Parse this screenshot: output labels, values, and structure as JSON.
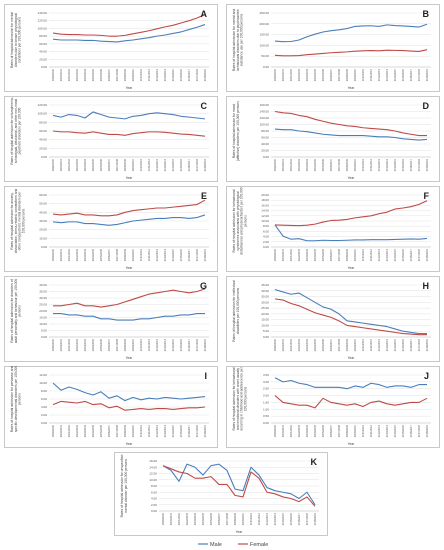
{
  "legend": {
    "items": [
      {
        "name": "Male",
        "color": "#4a7ebb"
      },
      {
        "name": "Female",
        "color": "#be4b48"
      }
    ]
  },
  "chart_data": [
    {
      "letter": "A",
      "type": "line",
      "ylabel": "Rates of hospital admission for mental disorders due to known physiological conditions per 100,000 persons",
      "xlabel": "Year",
      "ylim": [
        0,
        140
      ],
      "yticks": [
        "0.00",
        "20.00",
        "40.00",
        "60.00",
        "80.00",
        "100.00",
        "120.00",
        "140.00"
      ],
      "x": [
        "1999/2000",
        "2000/2001",
        "2001/2002",
        "2002/2003",
        "2003/2004",
        "2004/2005",
        "2005/2006",
        "2006/2007",
        "2007/2008",
        "2008/2009",
        "2009/2010",
        "2010/2011",
        "2011/2012",
        "2012/2013",
        "2013/2014",
        "2014/2015",
        "2015/2016",
        "2016/2017",
        "2017/2018",
        "2018/2019"
      ],
      "series": [
        {
          "name": "Male",
          "values": [
            72,
            70,
            70,
            70,
            69,
            69,
            67,
            66,
            65,
            68,
            70,
            73,
            76,
            80,
            83,
            87,
            91,
            97,
            103,
            110
          ]
        },
        {
          "name": "Female",
          "values": [
            88,
            85,
            84,
            84,
            83,
            83,
            82,
            80,
            80,
            82,
            86,
            90,
            94,
            99,
            104,
            108,
            114,
            120,
            127,
            136
          ]
        }
      ]
    },
    {
      "letter": "B",
      "type": "line",
      "ylabel": "Rates of hospital admission for mental and behavioural disorders due to psychoactive substance use per 100,000 persons",
      "xlabel": "Year",
      "ylim": [
        0,
        250
      ],
      "yticks": [
        "0.00",
        "50.00",
        "100.00",
        "150.00",
        "200.00",
        "250.00"
      ],
      "x": [
        "1999/2000",
        "2000/2001",
        "2001/2002",
        "2002/2003",
        "2003/2004",
        "2004/2005",
        "2005/2006",
        "2006/2007",
        "2007/2008",
        "2008/2009",
        "2009/2010",
        "2010/2011",
        "2011/2012",
        "2012/2013",
        "2013/2014",
        "2014/2015",
        "2015/2016",
        "2016/2017",
        "2017/2018",
        "2018/2019"
      ],
      "series": [
        {
          "name": "Male",
          "values": [
            120,
            117,
            118,
            125,
            140,
            152,
            162,
            168,
            172,
            178,
            188,
            190,
            191,
            188,
            195,
            192,
            190,
            188,
            185,
            198
          ]
        },
        {
          "name": "Female",
          "values": [
            54,
            52,
            52,
            53,
            57,
            60,
            63,
            66,
            68,
            70,
            73,
            75,
            76,
            75,
            78,
            77,
            76,
            74,
            72,
            80
          ]
        }
      ]
    },
    {
      "letter": "C",
      "type": "line",
      "ylabel": "Rates of hospital admission for schizophrenia, schizotypal, delusional, and other non-mood psychotic disorders per 100,000",
      "xlabel": "Year",
      "ylim": [
        0,
        120
      ],
      "yticks": [
        "0.00",
        "20.00",
        "40.00",
        "60.00",
        "80.00",
        "100.00",
        "120.00"
      ],
      "x": [
        "1999/2000",
        "2000/2001",
        "2001/2002",
        "2002/2003",
        "2003/2004",
        "2004/2005",
        "2005/2006",
        "2006/2007",
        "2007/2008",
        "2008/2009",
        "2009/2010",
        "2010/2011",
        "2011/2012",
        "2012/2013",
        "2013/2014",
        "2014/2015",
        "2015/2016",
        "2016/2017",
        "2017/2018",
        "2018/2019"
      ],
      "series": [
        {
          "name": "Male",
          "values": [
            96,
            92,
            98,
            96,
            90,
            104,
            98,
            92,
            90,
            88,
            94,
            96,
            100,
            102,
            100,
            98,
            94,
            92,
            90,
            88
          ]
        },
        {
          "name": "Female",
          "values": [
            60,
            58,
            58,
            56,
            55,
            58,
            55,
            52,
            52,
            50,
            54,
            56,
            58,
            58,
            57,
            55,
            53,
            52,
            50,
            48
          ]
        }
      ]
    },
    {
      "letter": "D",
      "type": "line",
      "ylabel": "Rates of hospital admission for mood [affective] disorders per 100,000 persons",
      "xlabel": "Year",
      "ylim": [
        0,
        160
      ],
      "yticks": [
        "0.00",
        "20.00",
        "40.00",
        "60.00",
        "80.00",
        "100.00",
        "120.00",
        "140.00",
        "160.00"
      ],
      "x": [
        "1999/2000",
        "2000/2001",
        "2001/2002",
        "2002/2003",
        "2003/2004",
        "2004/2005",
        "2005/2006",
        "2006/2007",
        "2007/2008",
        "2008/2009",
        "2009/2010",
        "2010/2011",
        "2011/2012",
        "2012/2013",
        "2013/2014",
        "2014/2015",
        "2015/2016",
        "2016/2017",
        "2017/2018",
        "2018/2019"
      ],
      "series": [
        {
          "name": "Male",
          "values": [
            86,
            84,
            84,
            80,
            78,
            74,
            70,
            68,
            66,
            66,
            66,
            66,
            64,
            62,
            62,
            60,
            56,
            54,
            52,
            54
          ]
        },
        {
          "name": "Female",
          "values": [
            140,
            136,
            134,
            128,
            124,
            116,
            110,
            104,
            100,
            96,
            94,
            90,
            88,
            86,
            84,
            80,
            74,
            70,
            66,
            66
          ]
        }
      ]
    },
    {
      "letter": "E",
      "type": "line",
      "ylabel": "Rates of hospital admission for anxiety, dissociative, stress-related, somatoform and other nonpsychotic mental disorders per 100,000 persons",
      "xlabel": "Year",
      "ylim": [
        0,
        60
      ],
      "yticks": [
        "0.00",
        "10.00",
        "20.00",
        "30.00",
        "40.00",
        "50.00",
        "60.00"
      ],
      "x": [
        "1999/2000",
        "2000/2001",
        "2001/2002",
        "2002/2003",
        "2003/2004",
        "2004/2005",
        "2005/2006",
        "2006/2007",
        "2007/2008",
        "2008/2009",
        "2009/2010",
        "2010/2011",
        "2011/2012",
        "2012/2013",
        "2013/2014",
        "2014/2015",
        "2015/2016",
        "2016/2017",
        "2017/2018",
        "2018/2019"
      ],
      "series": [
        {
          "name": "Male",
          "values": [
            29,
            28,
            29,
            29,
            27,
            27,
            26,
            25,
            26,
            28,
            30,
            31,
            32,
            33,
            33,
            34,
            34,
            33,
            34,
            37
          ]
        },
        {
          "name": "Female",
          "values": [
            38,
            37,
            38,
            39,
            37,
            37,
            36,
            36,
            37,
            40,
            42,
            43,
            44,
            45,
            45,
            46,
            47,
            48,
            49,
            54
          ]
        }
      ]
    },
    {
      "letter": "F",
      "type": "line",
      "ylabel": "Rates of hospital admission for behavioural syndromes associated with physiological disturbances and physical factors per 100,000 persons",
      "xlabel": "Year",
      "ylim": [
        0,
        20
      ],
      "yticks": [
        "0.00",
        "2.00",
        "4.00",
        "6.00",
        "8.00",
        "10.00",
        "12.00",
        "14.00",
        "16.00",
        "18.00",
        "20.00"
      ],
      "x": [
        "1999/2000",
        "2000/2001",
        "2001/2002",
        "2002/2003",
        "2003/2004",
        "2004/2005",
        "2005/2006",
        "2006/2007",
        "2007/2008",
        "2008/2009",
        "2009/2010",
        "2010/2011",
        "2011/2012",
        "2012/2013",
        "2013/2014",
        "2014/2015",
        "2015/2016",
        "2016/2017",
        "2017/2018",
        "2018/2019"
      ],
      "series": [
        {
          "name": "Male",
          "values": [
            8.5,
            4.2,
            3.0,
            3.2,
            2.4,
            2.4,
            2.6,
            2.5,
            2.5,
            2.6,
            2.7,
            2.7,
            2.8,
            2.8,
            2.8,
            2.9,
            3.0,
            3.1,
            3.0,
            3.3
          ]
        },
        {
          "name": "Female",
          "values": [
            8.5,
            8.4,
            8.3,
            8.2,
            8.4,
            8.8,
            9.6,
            10.2,
            10.3,
            10.6,
            11.2,
            11.6,
            12.0,
            12.8,
            13.4,
            14.6,
            15.0,
            15.5,
            16.4,
            17.8
          ]
        }
      ]
    },
    {
      "letter": "G",
      "type": "line",
      "ylabel": "Rates of hospital admission for disorders of adult personality and behaviour per 100,000 persons",
      "xlabel": "Year",
      "ylim": [
        0,
        40
      ],
      "yticks": [
        "0.00",
        "5.00",
        "10.00",
        "15.00",
        "20.00",
        "25.00",
        "30.00",
        "35.00",
        "40.00"
      ],
      "x": [
        "1999/2000",
        "2000/2001",
        "2001/2002",
        "2002/2003",
        "2003/2004",
        "2004/2005",
        "2005/2006",
        "2006/2007",
        "2007/2008",
        "2008/2009",
        "2009/2010",
        "2010/2011",
        "2011/2012",
        "2012/2013",
        "2013/2014",
        "2014/2015",
        "2015/2016",
        "2016/2017",
        "2017/2018",
        "2018/2019"
      ],
      "series": [
        {
          "name": "Male",
          "values": [
            18,
            18,
            17,
            17,
            16,
            16,
            14,
            14,
            13,
            13,
            13,
            14,
            14,
            15,
            16,
            16,
            17,
            17,
            18,
            18
          ]
        },
        {
          "name": "Female",
          "values": [
            24,
            24,
            25,
            26,
            24,
            24,
            23,
            24,
            25,
            27,
            29,
            31,
            33,
            34,
            35,
            36,
            35,
            34,
            35,
            37
          ]
        }
      ]
    },
    {
      "letter": "H",
      "type": "line",
      "ylabel": "Rates of hospital admission for intellectual disabilities per 100,000 persons",
      "xlabel": "Year",
      "ylim": [
        0,
        45
      ],
      "yticks": [
        "0.00",
        "5.00",
        "10.00",
        "15.00",
        "20.00",
        "25.00",
        "30.00",
        "35.00",
        "40.00",
        "45.00"
      ],
      "x": [
        "1999/2000",
        "2000/2001",
        "2001/2002",
        "2002/2003",
        "2003/2004",
        "2004/2005",
        "2005/2006",
        "2006/2007",
        "2007/2008",
        "2008/2009",
        "2009/2010",
        "2010/2011",
        "2011/2012",
        "2012/2013",
        "2013/2014",
        "2014/2015",
        "2015/2016",
        "2016/2017",
        "2017/2018",
        "2018/2019"
      ],
      "series": [
        {
          "name": "Male",
          "values": [
            41,
            39,
            37,
            38,
            34,
            30,
            26,
            24,
            20,
            14,
            13,
            12,
            11,
            10,
            9,
            7,
            5,
            4,
            3,
            3
          ]
        },
        {
          "name": "Female",
          "values": [
            33,
            32,
            29,
            27,
            24,
            21,
            19,
            17,
            14,
            10,
            9,
            8,
            7,
            6,
            5,
            4,
            3,
            2.5,
            2,
            2
          ]
        }
      ]
    },
    {
      "letter": "I",
      "type": "line",
      "ylabel": "Rates of hospital admission for pervasive and specific developmental disorders per 100,000 persons",
      "xlabel": "Year",
      "ylim": [
        0,
        12
      ],
      "yticks": [
        "0.00",
        "2.00",
        "4.00",
        "6.00",
        "8.00",
        "10.00",
        "12.00"
      ],
      "x": [
        "1999/2000",
        "2000/2001",
        "2001/2002",
        "2002/2003",
        "2003/2004",
        "2004/2005",
        "2005/2006",
        "2006/2007",
        "2007/2008",
        "2008/2009",
        "2009/2010",
        "2010/2011",
        "2011/2012",
        "2012/2013",
        "2013/2014",
        "2014/2015",
        "2015/2016",
        "2016/2017",
        "2017/2018",
        "2018/2019"
      ],
      "series": [
        {
          "name": "Male",
          "values": [
            10.0,
            8.2,
            9.0,
            8.4,
            7.6,
            7.0,
            7.8,
            6.2,
            6.8,
            5.6,
            6.4,
            5.8,
            6.2,
            6.0,
            6.4,
            6.2,
            6.0,
            6.2,
            6.4,
            6.6
          ]
        },
        {
          "name": "Female",
          "values": [
            4.6,
            5.4,
            5.2,
            5.0,
            5.4,
            4.6,
            4.8,
            3.8,
            4.2,
            3.2,
            3.4,
            3.6,
            3.4,
            3.6,
            3.6,
            3.4,
            3.6,
            3.8,
            3.8,
            4.0
          ]
        }
      ]
    },
    {
      "letter": "J",
      "type": "line",
      "ylabel": "Rates of hospital admission for behavioural and emotional disorders with onset usually occurring in childhood and adolescence per 100,000 persons",
      "xlabel": "Year",
      "ylim": [
        0,
        3.5
      ],
      "yticks": [
        "0.00",
        "0.50",
        "1.00",
        "1.50",
        "2.00",
        "2.50",
        "3.00",
        "3.50"
      ],
      "x": [
        "1999/2000",
        "2000/2001",
        "2001/2002",
        "2002/2003",
        "2003/2004",
        "2004/2005",
        "2005/2006",
        "2006/2007",
        "2007/2008",
        "2008/2009",
        "2009/2010",
        "2010/2011",
        "2011/2012",
        "2012/2013",
        "2013/2014",
        "2014/2015",
        "2015/2016",
        "2016/2017",
        "2017/2018",
        "2018/2019"
      ],
      "series": [
        {
          "name": "Male",
          "values": [
            3.3,
            3.0,
            3.1,
            2.9,
            2.8,
            2.6,
            2.6,
            2.6,
            2.6,
            2.5,
            2.7,
            2.6,
            2.9,
            2.8,
            2.6,
            2.7,
            2.7,
            2.6,
            2.8,
            2.8
          ]
        },
        {
          "name": "Female",
          "values": [
            2.0,
            1.5,
            1.4,
            1.3,
            1.3,
            1.1,
            1.8,
            1.5,
            1.4,
            1.3,
            1.4,
            1.2,
            1.5,
            1.6,
            1.4,
            1.3,
            1.4,
            1.5,
            1.5,
            1.8
          ]
        }
      ]
    },
    {
      "letter": "K",
      "type": "line",
      "ylabel": "Rates of hospital admission for unspecified mental disorder per 100,000 persons",
      "xlabel": "Year",
      "ylim": [
        0,
        16
      ],
      "yticks": [
        "0.00",
        "2.00",
        "4.00",
        "6.00",
        "8.00",
        "10.00",
        "12.00",
        "14.00",
        "16.00"
      ],
      "x": [
        "1999/2000",
        "2000/2001",
        "2001/2002",
        "2002/2003",
        "2003/2004",
        "2004/2005",
        "2005/2006",
        "2006/2007",
        "2007/2008",
        "2008/2009",
        "2009/2010",
        "2010/2011",
        "2011/2012",
        "2012/2013",
        "2013/2014",
        "2014/2015",
        "2015/2016",
        "2016/2017",
        "2017/2018",
        "2018/2019"
      ],
      "series": [
        {
          "name": "Male",
          "values": [
            14.5,
            13.0,
            9.5,
            15.0,
            14.0,
            11.5,
            14.5,
            15.0,
            13.0,
            7.0,
            6.5,
            14.0,
            11.5,
            7.5,
            6.5,
            6.0,
            5.5,
            4.0,
            6.0,
            2.0
          ]
        },
        {
          "name": "Female",
          "values": [
            14.5,
            13.5,
            12.5,
            12.0,
            10.5,
            10.5,
            11.0,
            8.5,
            8.5,
            5.0,
            4.5,
            12.5,
            10.5,
            6.0,
            5.5,
            4.5,
            4.0,
            3.0,
            4.5,
            1.5
          ]
        }
      ]
    }
  ]
}
